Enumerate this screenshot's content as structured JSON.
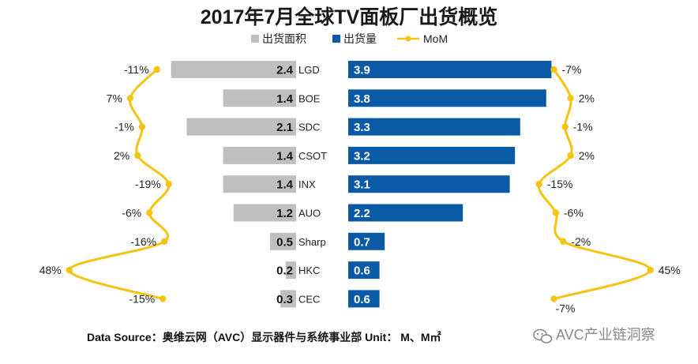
{
  "chart_data": {
    "type": "bar",
    "title": "2017年7月全球TV面板厂出货概览",
    "legend": {
      "placement": "top",
      "entries": [
        "出货面积",
        "出货量",
        "MoM"
      ]
    },
    "categories": [
      "LGD",
      "BOE",
      "SDC",
      "CSOT",
      "INX",
      "AUO",
      "Sharp",
      "HKC",
      "CEC"
    ],
    "series": [
      {
        "name": "出货面积",
        "values": [
          2.4,
          1.4,
          2.1,
          1.4,
          1.4,
          1.2,
          0.5,
          0.2,
          0.3
        ]
      },
      {
        "name": "出货量",
        "values": [
          3.9,
          3.8,
          3.3,
          3.2,
          3.1,
          2.2,
          0.7,
          0.6,
          0.6
        ]
      }
    ],
    "mom_area": [
      "-11%",
      "7%",
      "-1%",
      "2%",
      "-19%",
      "-6%",
      "-16%",
      "48%",
      "-15%"
    ],
    "mom_volume": [
      "-7%",
      "2%",
      "-1%",
      "2%",
      "-15%",
      "-6%",
      "-2%",
      "45%",
      "-7%"
    ],
    "mom_area_values": [
      -11,
      7,
      -1,
      2,
      -19,
      -6,
      -16,
      48,
      -15
    ],
    "mom_volume_values": [
      -7,
      2,
      -1,
      2,
      -15,
      -6,
      -2,
      45,
      -7
    ],
    "colors": {
      "area": "#bfbfbf",
      "volume": "#0b5aa6",
      "mom": "#f5c311"
    }
  },
  "source_text": "Data Source：奥维云网（AVC）显示器件与系统事业部  Unit： M、M㎡",
  "watermark_text": "AVC产业链洞察",
  "watermark_icon": "wechat-icon"
}
